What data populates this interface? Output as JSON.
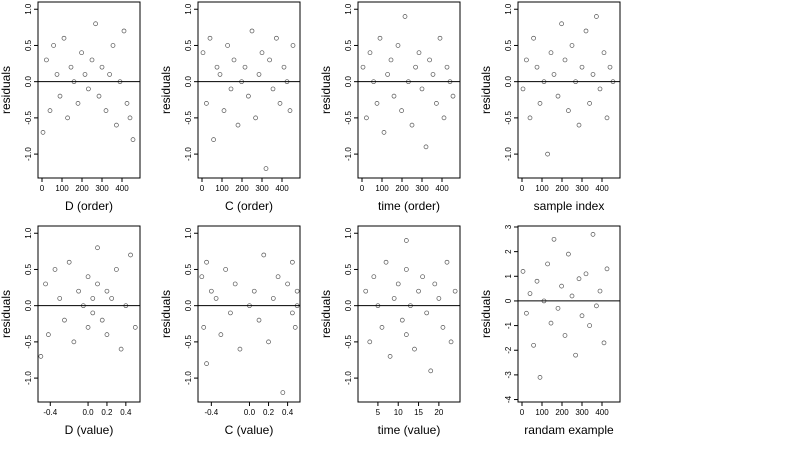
{
  "chart_data": [
    {
      "type": "scatter",
      "xlabel": "D (order)",
      "ylabel": "residuals",
      "color": "#555555",
      "hline": 0,
      "xlim": [
        -20,
        490
      ],
      "ylim": [
        -1.33,
        1.1
      ],
      "xticks": [
        0,
        100,
        200,
        300,
        400
      ],
      "yticks": [
        {
          "value": 1,
          "label": "1.0"
        },
        {
          "value": 0.5,
          "label": "0.5"
        },
        {
          "value": 0,
          "label": "0.0"
        },
        {
          "value": -0.5,
          "label": "-0.5"
        },
        {
          "value": -1,
          "label": "-1.0"
        }
      ],
      "x": [
        5,
        22,
        40,
        58,
        75,
        90,
        110,
        128,
        145,
        160,
        180,
        198,
        215,
        232,
        250,
        268,
        285,
        300,
        320,
        338,
        355,
        372,
        390,
        410,
        425,
        440,
        455
      ],
      "y": [
        -0.7,
        0.3,
        -0.4,
        0.5,
        0.1,
        -0.2,
        0.6,
        -0.5,
        0.2,
        0.0,
        -0.3,
        0.4,
        0.1,
        -0.1,
        0.3,
        0.8,
        -0.2,
        0.2,
        -0.4,
        0.1,
        0.5,
        -0.6,
        0.0,
        0.7,
        -0.3,
        -0.5,
        -0.8
      ]
    },
    {
      "type": "scatter",
      "xlabel": "C (order)",
      "ylabel": "residuals",
      "color": "#555555",
      "hline": 0,
      "xlim": [
        -20,
        490
      ],
      "ylim": [
        -1.33,
        1.1
      ],
      "xticks": [
        0,
        100,
        200,
        300,
        400
      ],
      "yticks": [
        {
          "value": 1,
          "label": "1.0"
        },
        {
          "value": 0.5,
          "label": "0.5"
        },
        {
          "value": 0,
          "label": "0.0"
        },
        {
          "value": -0.5,
          "label": "-0.5"
        },
        {
          "value": -1,
          "label": "-1.0"
        }
      ],
      "x": [
        5,
        22,
        40,
        58,
        75,
        90,
        110,
        128,
        145,
        160,
        180,
        198,
        215,
        232,
        250,
        268,
        285,
        300,
        320,
        338,
        355,
        372,
        390,
        410,
        425,
        440,
        455
      ],
      "y": [
        0.4,
        -0.3,
        0.6,
        -0.8,
        0.2,
        0.1,
        -0.4,
        0.5,
        -0.1,
        0.3,
        -0.6,
        0.0,
        0.2,
        -0.2,
        0.7,
        -0.5,
        0.1,
        0.4,
        -1.2,
        0.3,
        -0.1,
        0.6,
        -0.3,
        0.2,
        0.0,
        -0.4,
        0.5
      ]
    },
    {
      "type": "scatter",
      "xlabel": "time (order)",
      "ylabel": "residuals",
      "color": "#555555",
      "hline": 0,
      "xlim": [
        -20,
        490
      ],
      "ylim": [
        -1.33,
        1.1
      ],
      "xticks": [
        0,
        100,
        200,
        300,
        400
      ],
      "yticks": [
        {
          "value": 1,
          "label": "1.0"
        },
        {
          "value": 0.5,
          "label": "0.5"
        },
        {
          "value": 0,
          "label": "0.0"
        },
        {
          "value": -0.5,
          "label": "-0.5"
        },
        {
          "value": -1,
          "label": "-1.0"
        }
      ],
      "x": [
        5,
        22,
        40,
        58,
        75,
        90,
        110,
        128,
        145,
        160,
        180,
        198,
        215,
        232,
        250,
        268,
        285,
        300,
        320,
        338,
        355,
        372,
        390,
        410,
        425,
        440,
        455
      ],
      "y": [
        0.2,
        -0.5,
        0.4,
        0.0,
        -0.3,
        0.6,
        -0.7,
        0.1,
        0.3,
        -0.2,
        0.5,
        -0.4,
        0.9,
        0.0,
        -0.6,
        0.2,
        0.4,
        -0.1,
        -0.9,
        0.3,
        0.1,
        -0.3,
        0.6,
        -0.5,
        0.2,
        0.0,
        -0.2
      ]
    },
    {
      "type": "scatter",
      "xlabel": "sample index",
      "ylabel": "residuals",
      "color": "#555555",
      "hline": 0,
      "xlim": [
        -20,
        490
      ],
      "ylim": [
        -1.33,
        1.1
      ],
      "xticks": [
        0,
        100,
        200,
        300,
        400
      ],
      "yticks": [
        {
          "value": 1,
          "label": "1.0"
        },
        {
          "value": 0.5,
          "label": "0.5"
        },
        {
          "value": 0,
          "label": "0.0"
        },
        {
          "value": -0.5,
          "label": "-0.5"
        },
        {
          "value": -1,
          "label": "-1.0"
        }
      ],
      "x": [
        5,
        22,
        40,
        58,
        75,
        90,
        110,
        128,
        145,
        160,
        180,
        198,
        215,
        232,
        250,
        268,
        285,
        300,
        320,
        338,
        355,
        372,
        390,
        410,
        425,
        440,
        455
      ],
      "y": [
        -0.1,
        0.3,
        -0.5,
        0.6,
        0.2,
        -0.3,
        0.0,
        -1.0,
        0.4,
        0.1,
        -0.2,
        0.8,
        0.3,
        -0.4,
        0.5,
        0.0,
        -0.6,
        0.2,
        0.7,
        -0.3,
        0.1,
        0.9,
        -0.1,
        0.4,
        -0.5,
        0.2,
        0.0
      ]
    },
    {
      "type": "scatter",
      "xlabel": "D (value)",
      "ylabel": "residuals",
      "color": "#555555",
      "hline": 0,
      "xlim": [
        -0.53,
        0.55
      ],
      "ylim": [
        -1.33,
        1.1
      ],
      "xticks": [
        -0.4,
        {
          "value": 0,
          "label": "0.0"
        },
        0.2,
        0.4
      ],
      "yticks": [
        {
          "value": 1,
          "label": "1.0"
        },
        {
          "value": 0.5,
          "label": "0.5"
        },
        {
          "value": 0,
          "label": "0.0"
        },
        {
          "value": -0.5,
          "label": "-0.5"
        },
        {
          "value": -1,
          "label": "-1.0"
        }
      ],
      "x": [
        -0.5,
        -0.45,
        -0.42,
        -0.35,
        -0.3,
        -0.25,
        -0.2,
        -0.15,
        -0.1,
        -0.05,
        0,
        0,
        0.05,
        0.05,
        0.1,
        0.1,
        0.15,
        0.2,
        0.2,
        0.25,
        0.3,
        0.35,
        0.4,
        0.45,
        0.5
      ],
      "y": [
        -0.7,
        0.3,
        -0.4,
        0.5,
        0.1,
        -0.2,
        0.6,
        -0.5,
        0.2,
        0.0,
        -0.3,
        0.4,
        0.1,
        -0.1,
        0.3,
        0.8,
        -0.2,
        0.2,
        -0.4,
        0.1,
        0.5,
        -0.6,
        0.0,
        0.7,
        -0.3
      ]
    },
    {
      "type": "scatter",
      "xlabel": "C (value)",
      "ylabel": "residuals",
      "color": "#555555",
      "hline": 0,
      "xlim": [
        -0.54,
        0.53
      ],
      "ylim": [
        -1.33,
        1.1
      ],
      "xticks": [
        -0.4,
        {
          "value": 0,
          "label": "0.0"
        },
        0.2,
        0.4
      ],
      "yticks": [
        {
          "value": 1,
          "label": "1.0"
        },
        {
          "value": 0.5,
          "label": "0.5"
        },
        {
          "value": 0,
          "label": "0.0"
        },
        {
          "value": -0.5,
          "label": "-0.5"
        },
        {
          "value": -1,
          "label": "-1.0"
        }
      ],
      "x": [
        -0.5,
        -0.48,
        -0.45,
        -0.45,
        -0.4,
        -0.35,
        -0.3,
        -0.25,
        -0.2,
        -0.15,
        -0.1,
        0,
        0.05,
        0.1,
        0.15,
        0.2,
        0.25,
        0.3,
        0.35,
        0.4,
        0.45,
        0.45,
        0.48,
        0.5,
        0.5
      ],
      "y": [
        0.4,
        -0.3,
        0.6,
        -0.8,
        0.2,
        0.1,
        -0.4,
        0.5,
        -0.1,
        0.3,
        -0.6,
        0.0,
        0.2,
        -0.2,
        0.7,
        -0.5,
        0.1,
        0.4,
        -1.2,
        0.3,
        -0.1,
        0.6,
        -0.3,
        0.2,
        0.0
      ]
    },
    {
      "type": "scatter",
      "xlabel": "time (value)",
      "ylabel": "residuals",
      "color": "#555555",
      "hline": 0,
      "xlim": [
        0.1,
        25.2
      ],
      "ylim": [
        -1.33,
        1.1
      ],
      "xticks": [
        5,
        10,
        15,
        20
      ],
      "yticks": [
        {
          "value": 1,
          "label": "1.0"
        },
        {
          "value": 0.5,
          "label": "0.5"
        },
        {
          "value": 0,
          "label": "0.0"
        },
        {
          "value": -0.5,
          "label": "-0.5"
        },
        {
          "value": -1,
          "label": "-1.0"
        }
      ],
      "x": [
        2,
        3,
        4,
        5,
        6,
        7,
        8,
        9,
        10,
        11,
        12,
        12,
        12,
        13,
        14,
        15,
        16,
        17,
        18,
        19,
        20,
        21,
        22,
        23,
        24
      ],
      "y": [
        0.2,
        -0.5,
        0.4,
        0.0,
        -0.3,
        0.6,
        -0.7,
        0.1,
        0.3,
        -0.2,
        0.5,
        -0.4,
        0.9,
        0.0,
        -0.6,
        0.2,
        0.4,
        -0.1,
        -0.9,
        0.3,
        0.1,
        -0.3,
        0.6,
        -0.5,
        0.2
      ]
    },
    {
      "type": "scatter",
      "xlabel": "randam example",
      "ylabel": "residuals",
      "color": "#555555",
      "hline": 0,
      "xlim": [
        -20,
        490
      ],
      "ylim": [
        -4.1,
        3.04
      ],
      "xticks": [
        0,
        100,
        200,
        300,
        400
      ],
      "yticks": [
        3,
        2,
        1,
        0,
        -1,
        -2,
        -3,
        -4
      ],
      "x": [
        5,
        22,
        40,
        58,
        75,
        90,
        110,
        128,
        145,
        160,
        180,
        198,
        215,
        232,
        250,
        268,
        285,
        300,
        320,
        338,
        355,
        372,
        390,
        410,
        425
      ],
      "y": [
        1.2,
        -0.5,
        0.3,
        -1.8,
        0.8,
        -3.1,
        0.0,
        1.5,
        -0.9,
        2.5,
        -0.3,
        0.6,
        -1.4,
        1.9,
        0.2,
        -2.2,
        0.9,
        -0.6,
        1.1,
        -1.0,
        2.7,
        -0.2,
        0.4,
        -1.7,
        1.3
      ]
    }
  ]
}
